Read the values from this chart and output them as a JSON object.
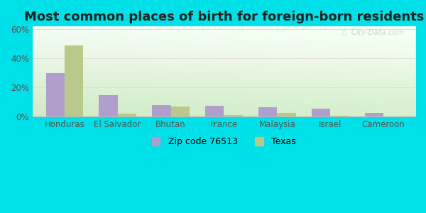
{
  "title": "Most common places of birth for foreign-born residents",
  "categories": [
    "Honduras",
    "El Salvador",
    "Bhutan",
    "France",
    "Malaysia",
    "Israel",
    "Cameroon"
  ],
  "zip_values": [
    30,
    15,
    8,
    7.5,
    6.5,
    5.5,
    2.5
  ],
  "texas_values": [
    49,
    2,
    7,
    1,
    2.5,
    0.8,
    0
  ],
  "zip_color": "#b09fcc",
  "texas_color": "#b8c98a",
  "background_outer": "#00e0e8",
  "ylabel_ticks": [
    "0%",
    "20%",
    "40%",
    "60%"
  ],
  "ytick_vals": [
    0,
    20,
    40,
    60
  ],
  "ylim": [
    0,
    62
  ],
  "legend_zip_label": "Zip code 76513",
  "legend_texas_label": "Texas",
  "bar_width": 0.35,
  "title_fontsize": 13,
  "tick_fontsize": 8.5,
  "legend_fontsize": 9,
  "grid_color": "#e8d8e0",
  "watermark_color": "#c8d8c8",
  "grad_top_left": "#ddf0d8",
  "grad_top_right": "#f0f8f0",
  "grad_bottom_left": "#c8e8c0",
  "grad_bottom_right": "#e8f5e8"
}
